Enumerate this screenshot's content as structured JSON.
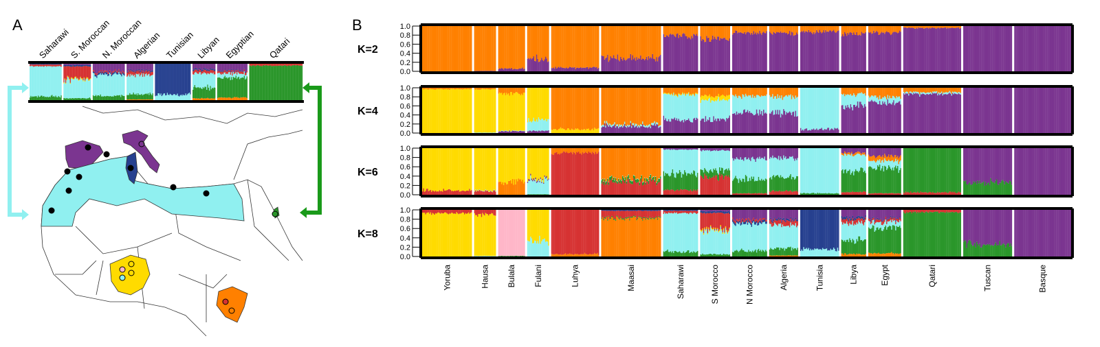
{
  "panel_labels": {
    "a": "A",
    "b": "B"
  },
  "colors": {
    "orange": "#ff8000",
    "purple": "#7b3590",
    "yellow": "#ffdb00",
    "cyan": "#90f0f0",
    "red": "#d63232",
    "green": "#2a962a",
    "pink": "#ffb6c8",
    "blue": "#26408f"
  },
  "chart_data": {
    "type": "admixture-stacked-bar",
    "ylim": [
      0,
      1
    ],
    "yticks": [
      "1.0",
      "0.8",
      "0.6",
      "0.4",
      "0.2",
      "0.0"
    ],
    "k_labels": [
      "K=2",
      "K=4",
      "K=6",
      "K=8"
    ],
    "populations": [
      {
        "name": "Yoruba",
        "n": 50
      },
      {
        "name": "Hausa",
        "n": 22
      },
      {
        "name": "Bulala",
        "n": 27
      },
      {
        "name": "Fulani",
        "n": 22
      },
      {
        "name": "Luhya",
        "n": 48
      },
      {
        "name": "Maasai",
        "n": 60
      },
      {
        "name": "Saharawi",
        "n": 35
      },
      {
        "name": "S Morocco",
        "n": 30
      },
      {
        "name": "N Morocco",
        "n": 35
      },
      {
        "name": "Algeria",
        "n": 29
      },
      {
        "name": "Tunisia",
        "n": 39
      },
      {
        "name": "Libya",
        "n": 25
      },
      {
        "name": "Egypt",
        "n": 33
      },
      {
        "name": "Qatari",
        "n": 58
      },
      {
        "name": "Tuscan",
        "n": 49
      },
      {
        "name": "Basque",
        "n": 57
      }
    ],
    "ancestry": {
      "K=2": [
        [
          [
            "purple",
            0
          ],
          [
            "orange",
            1
          ]
        ],
        [
          [
            "purple",
            0.01
          ],
          [
            "orange",
            0.99
          ]
        ],
        [
          [
            "purple",
            0.06
          ],
          [
            "orange",
            0.94
          ]
        ],
        [
          [
            "purple",
            0.27
          ],
          [
            "orange",
            0.73
          ]
        ],
        [
          [
            "purple",
            0.08
          ],
          [
            "orange",
            0.92
          ]
        ],
        [
          [
            "purple",
            0.29
          ],
          [
            "orange",
            0.71
          ]
        ],
        [
          [
            "purple",
            0.78
          ],
          [
            "orange",
            0.22
          ]
        ],
        [
          [
            "purple",
            0.72
          ],
          [
            "orange",
            0.28
          ]
        ],
        [
          [
            "purple",
            0.85
          ],
          [
            "orange",
            0.15
          ]
        ],
        [
          [
            "purple",
            0.84
          ],
          [
            "orange",
            0.16
          ]
        ],
        [
          [
            "purple",
            0.88
          ],
          [
            "orange",
            0.12
          ]
        ],
        [
          [
            "purple",
            0.83
          ],
          [
            "orange",
            0.17
          ]
        ],
        [
          [
            "purple",
            0.86
          ],
          [
            "orange",
            0.14
          ]
        ],
        [
          [
            "purple",
            0.96
          ],
          [
            "orange",
            0.04
          ]
        ],
        [
          [
            "purple",
            1
          ]
        ],
        [
          [
            "purple",
            1
          ]
        ]
      ],
      "K=4": [
        [
          [
            "yellow",
            0.97
          ],
          [
            "orange",
            0.03
          ]
        ],
        [
          [
            "cyan",
            0.01
          ],
          [
            "yellow",
            0.96
          ],
          [
            "orange",
            0.03
          ]
        ],
        [
          [
            "purple",
            0.04
          ],
          [
            "cyan",
            0.01
          ],
          [
            "yellow",
            0.82
          ],
          [
            "orange",
            0.13
          ]
        ],
        [
          [
            "purple",
            0.05
          ],
          [
            "cyan",
            0.25
          ],
          [
            "yellow",
            0.7
          ]
        ],
        [
          [
            "yellow",
            0.08
          ],
          [
            "orange",
            0.92
          ]
        ],
        [
          [
            "purple",
            0.15
          ],
          [
            "cyan",
            0.04
          ],
          [
            "orange",
            0.81
          ]
        ],
        [
          [
            "purple",
            0.3
          ],
          [
            "cyan",
            0.55
          ],
          [
            "yellow",
            0.02
          ],
          [
            "orange",
            0.13
          ]
        ],
        [
          [
            "purple",
            0.3
          ],
          [
            "cyan",
            0.42
          ],
          [
            "yellow",
            0.1
          ],
          [
            "orange",
            0.18
          ]
        ],
        [
          [
            "purple",
            0.45
          ],
          [
            "cyan",
            0.37
          ],
          [
            "orange",
            0.18
          ]
        ],
        [
          [
            "purple",
            0.45
          ],
          [
            "cyan",
            0.35
          ],
          [
            "orange",
            0.2
          ]
        ],
        [
          [
            "purple",
            0.08
          ],
          [
            "cyan",
            0.92
          ]
        ],
        [
          [
            "purple",
            0.6
          ],
          [
            "cyan",
            0.25
          ],
          [
            "orange",
            0.15
          ]
        ],
        [
          [
            "purple",
            0.68
          ],
          [
            "cyan",
            0.12
          ],
          [
            "orange",
            0.2
          ]
        ],
        [
          [
            "purple",
            0.86
          ],
          [
            "cyan",
            0.04
          ],
          [
            "orange",
            0.1
          ]
        ],
        [
          [
            "purple",
            1
          ]
        ],
        [
          [
            "purple",
            1
          ]
        ]
      ],
      "K=6": [
        [
          [
            "red",
            0.09
          ],
          [
            "yellow",
            0.91
          ]
        ],
        [
          [
            "red",
            0.08
          ],
          [
            "cyan",
            0.01
          ],
          [
            "yellow",
            0.91
          ]
        ],
        [
          [
            "orange",
            0.28
          ],
          [
            "yellow",
            0.72
          ]
        ],
        [
          [
            "green",
            0.01
          ],
          [
            "cyan",
            0.3
          ],
          [
            "purple",
            0.03
          ],
          [
            "yellow",
            0.66
          ]
        ],
        [
          [
            "red",
            0.9
          ],
          [
            "orange",
            0.1
          ]
        ],
        [
          [
            "red",
            0.28
          ],
          [
            "green",
            0.06
          ],
          [
            "cyan",
            0.01
          ],
          [
            "orange",
            0.65
          ]
        ],
        [
          [
            "red",
            0.1
          ],
          [
            "green",
            0.35
          ],
          [
            "cyan",
            0.52
          ],
          [
            "purple",
            0.03
          ]
        ],
        [
          [
            "red",
            0.38
          ],
          [
            "green",
            0.15
          ],
          [
            "cyan",
            0.42
          ],
          [
            "purple",
            0.05
          ]
        ],
        [
          [
            "red",
            0.03
          ],
          [
            "green",
            0.3
          ],
          [
            "cyan",
            0.45
          ],
          [
            "purple",
            0.22
          ]
        ],
        [
          [
            "red",
            0.08
          ],
          [
            "green",
            0.3
          ],
          [
            "cyan",
            0.42
          ],
          [
            "purple",
            0.2
          ]
        ],
        [
          [
            "green",
            0.03
          ],
          [
            "cyan",
            0.97
          ]
        ],
        [
          [
            "red",
            0.06
          ],
          [
            "green",
            0.45
          ],
          [
            "cyan",
            0.35
          ],
          [
            "orange",
            0.04
          ],
          [
            "purple",
            0.1
          ]
        ],
        [
          [
            "red",
            0.03
          ],
          [
            "green",
            0.55
          ],
          [
            "cyan",
            0.15
          ],
          [
            "orange",
            0.1
          ],
          [
            "purple",
            0.17
          ]
        ],
        [
          [
            "red",
            0.05
          ],
          [
            "green",
            0.95
          ]
        ],
        [
          [
            "green",
            0.27
          ],
          [
            "purple",
            0.73
          ]
        ],
        [
          [
            "purple",
            1
          ]
        ]
      ],
      "K=8": [
        [
          [
            "yellow",
            0.93
          ],
          [
            "red",
            0.07
          ]
        ],
        [
          [
            "cyan",
            0.01
          ],
          [
            "yellow",
            0.89
          ],
          [
            "red",
            0.1
          ]
        ],
        [
          [
            "green",
            0.01
          ],
          [
            "pink",
            0.99
          ]
        ],
        [
          [
            "cyan",
            0.33
          ],
          [
            "yellow",
            0.67
          ]
        ],
        [
          [
            "orange",
            0.05
          ],
          [
            "red",
            0.95
          ]
        ],
        [
          [
            "orange",
            0.82
          ],
          [
            "green",
            0.02
          ],
          [
            "red",
            0.14
          ],
          [
            "blue",
            0.02
          ]
        ],
        [
          [
            "green",
            0.1
          ],
          [
            "cyan",
            0.83
          ],
          [
            "red",
            0.05
          ],
          [
            "blue",
            0.02
          ]
        ],
        [
          [
            "green",
            0.05
          ],
          [
            "cyan",
            0.5
          ],
          [
            "yellow",
            0.03
          ],
          [
            "red",
            0.35
          ],
          [
            "blue",
            0.04
          ],
          [
            "purple",
            0.03
          ]
        ],
        [
          [
            "green",
            0.12
          ],
          [
            "cyan",
            0.58
          ],
          [
            "blue",
            0.05
          ],
          [
            "red",
            0.04
          ],
          [
            "purple",
            0.21
          ]
        ],
        [
          [
            "orange",
            0.02
          ],
          [
            "green",
            0.15
          ],
          [
            "cyan",
            0.5
          ],
          [
            "red",
            0.1
          ],
          [
            "blue",
            0.03
          ],
          [
            "purple",
            0.2
          ]
        ],
        [
          [
            "cyan",
            0.15
          ],
          [
            "blue",
            0.85
          ]
        ],
        [
          [
            "orange",
            0.05
          ],
          [
            "green",
            0.3
          ],
          [
            "cyan",
            0.38
          ],
          [
            "red",
            0.08
          ],
          [
            "blue",
            0.04
          ],
          [
            "purple",
            0.15
          ]
        ],
        [
          [
            "orange",
            0.07
          ],
          [
            "green",
            0.55
          ],
          [
            "cyan",
            0.12
          ],
          [
            "red",
            0.06
          ],
          [
            "blue",
            0.02
          ],
          [
            "purple",
            0.18
          ]
        ],
        [
          [
            "green",
            0.95
          ],
          [
            "red",
            0.05
          ]
        ],
        [
          [
            "green",
            0.26
          ],
          [
            "purple",
            0.74
          ]
        ],
        [
          [
            "purple",
            1
          ]
        ]
      ]
    },
    "panel_a": {
      "k": "K=8",
      "populations": [
        {
          "name": "Saharawi",
          "source": 6
        },
        {
          "name": "S. Moroccan",
          "source": 7
        },
        {
          "name": "N. Moroccan",
          "source": 8
        },
        {
          "name": "Algerian",
          "source": 9
        },
        {
          "name": "Tunisian",
          "source": 10
        },
        {
          "name": "Libyan",
          "source": 11
        },
        {
          "name": "Egyptian",
          "source": 12
        },
        {
          "name": "Qatari",
          "source": 13
        }
      ]
    }
  }
}
